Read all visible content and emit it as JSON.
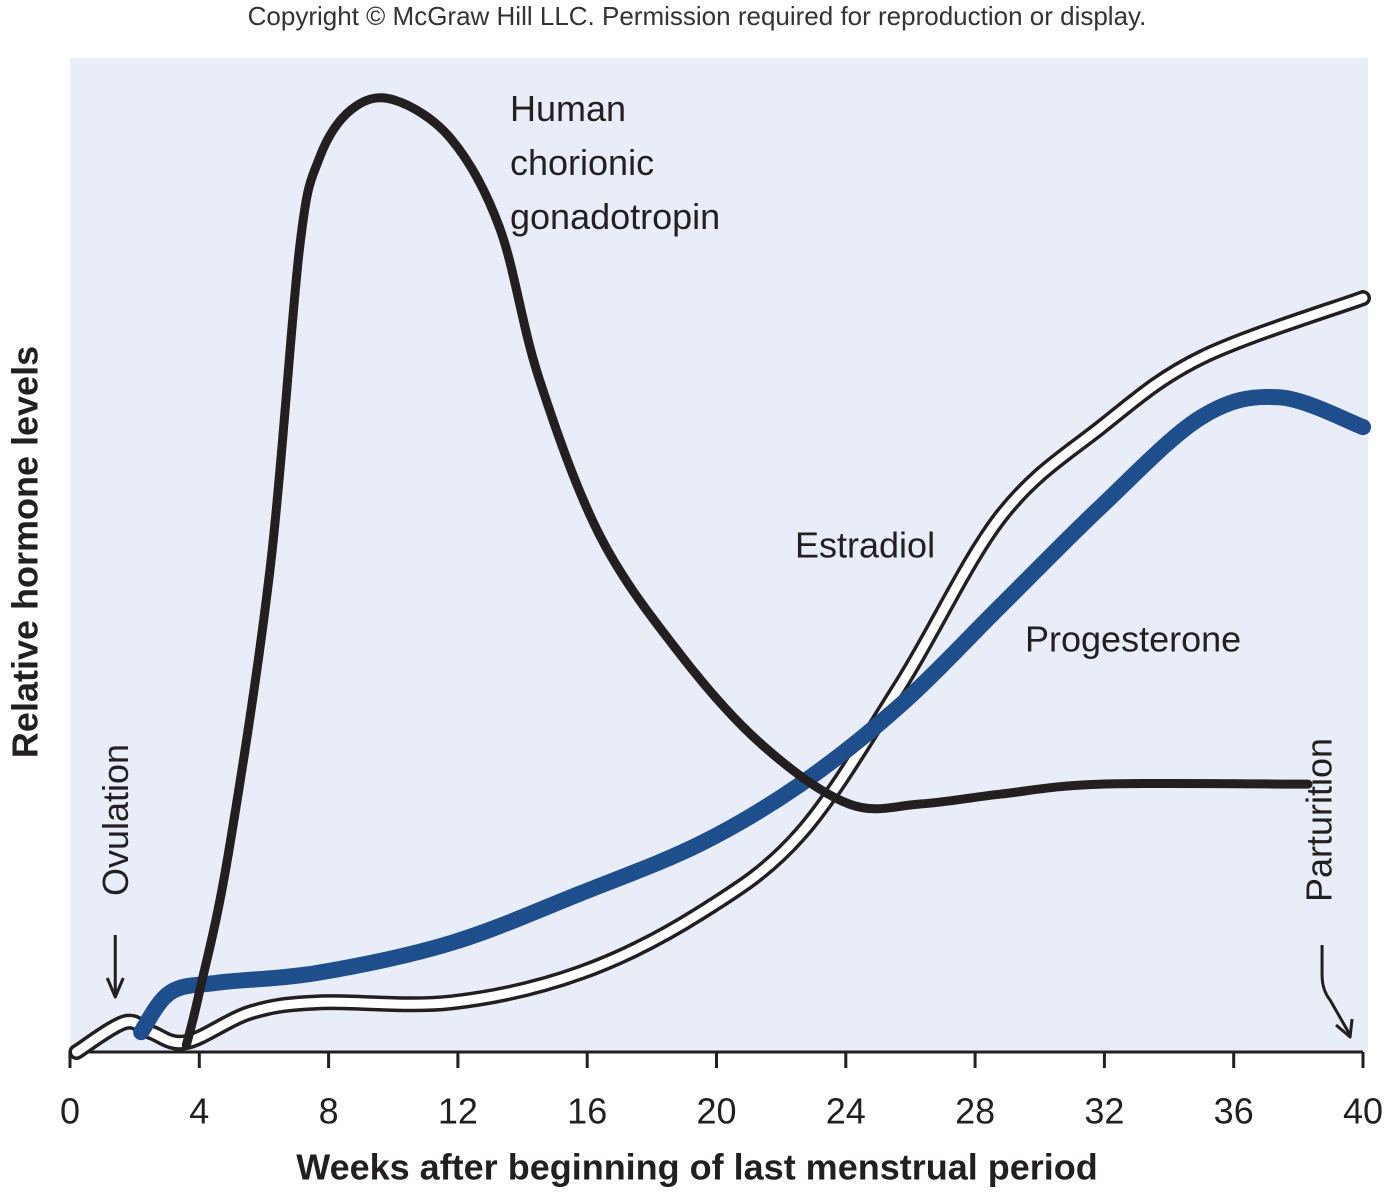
{
  "chart_data": {
    "type": "line",
    "header": "Copyright © McGraw Hill LLC. Permission required for reproduction or display.",
    "xlabel": "Weeks after beginning of last menstrual period",
    "ylabel": "Relative hormone levels",
    "xlim": [
      0,
      40
    ],
    "xticks": [
      0,
      4,
      8,
      12,
      16,
      20,
      24,
      28,
      32,
      36,
      40
    ],
    "ylim": [
      0,
      100
    ],
    "background": "#e8edf7",
    "series": [
      {
        "name": "Human chorionic gonadotropin",
        "color": "#231f20",
        "width": 9,
        "x": [
          3.6,
          4,
          4.9,
          6.2,
          7.1,
          7.7,
          8.7,
          10,
          11.8,
          13.3,
          14.5,
          16.4,
          18.9,
          21.4,
          24.1,
          26.3,
          28.8,
          31.9,
          38.3
        ],
        "values": [
          0.7,
          6,
          20,
          49,
          81,
          90,
          95,
          96,
          92,
          83,
          68,
          52,
          40,
          31,
          25,
          25,
          26,
          27,
          27
        ]
      },
      {
        "name": "Estradiol",
        "color": "#ffffff",
        "edge": "#231f20",
        "width": 16,
        "x": [
          0.2,
          1.7,
          2.5,
          3.6,
          5.6,
          7.7,
          11.8,
          15.8,
          19.5,
          22.6,
          25.7,
          28.8,
          31.9,
          35,
          40
        ],
        "values": [
          0,
          3,
          2,
          1,
          4,
          5,
          5,
          8,
          14,
          22,
          37,
          54,
          63,
          70,
          76
        ]
      },
      {
        "name": "Progesterone",
        "color": "#1f4e8c",
        "width": 16,
        "x": [
          2.2,
          3.1,
          4.6,
          7.7,
          11.8,
          15.8,
          19.5,
          22.6,
          25.7,
          28.8,
          31.9,
          35,
          37.4,
          40
        ],
        "values": [
          2,
          6,
          7,
          8,
          11,
          16,
          21,
          27,
          35,
          45,
          55,
          64,
          66,
          63
        ]
      }
    ],
    "annotations": [
      {
        "text": "Ovulation",
        "x": 1.4
      },
      {
        "text": "Parturition",
        "x": 39.6
      }
    ]
  }
}
